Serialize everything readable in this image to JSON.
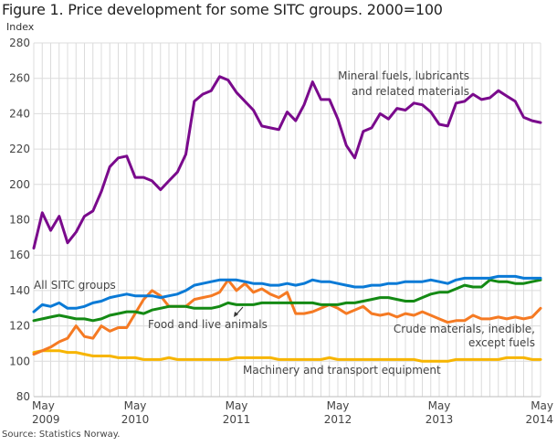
{
  "chart_data": {
    "type": "line",
    "title": "Figure 1. Price development for some SITC groups. 2000=100",
    "xlabel": "",
    "ylabel": "Index",
    "ylim": [
      80,
      280
    ],
    "yticks": [
      80,
      100,
      120,
      140,
      160,
      180,
      200,
      220,
      240,
      260,
      280
    ],
    "xrange": [
      "May 2009",
      "May 2014"
    ],
    "xticks": [
      {
        "month_index": 0,
        "line1": "May",
        "line2": "2009"
      },
      {
        "month_index": 12,
        "line1": "May",
        "line2": "2010"
      },
      {
        "month_index": 24,
        "line1": "May",
        "line2": "2011"
      },
      {
        "month_index": 36,
        "line1": "May",
        "line2": "2012"
      },
      {
        "month_index": 48,
        "line1": "May",
        "line2": "2013"
      },
      {
        "month_index": 60,
        "line1": "May",
        "line2": "2014"
      }
    ],
    "grid": true,
    "series": [
      {
        "name": "Mineral fuels, lubricants and related materials",
        "color": "#7a0a8c",
        "values": [
          164,
          184,
          174,
          182,
          167,
          173,
          182,
          185,
          196,
          210,
          215,
          216,
          204,
          204,
          202,
          197,
          202,
          207,
          217,
          247,
          251,
          253,
          261,
          259,
          252,
          247,
          242,
          233,
          232,
          231,
          241,
          236,
          245,
          258,
          248,
          248,
          237,
          222,
          215,
          230,
          232,
          240,
          237,
          243,
          242,
          246,
          245,
          241,
          234,
          233,
          246,
          247,
          251,
          248,
          249,
          253,
          250,
          247,
          238,
          236,
          235
        ]
      },
      {
        "name": "All SITC groups",
        "color": "#0a7ad6",
        "values": [
          128,
          132,
          131,
          133,
          130,
          130,
          131,
          133,
          134,
          136,
          137,
          138,
          137,
          137,
          137,
          136,
          137,
          138,
          140,
          143,
          144,
          145,
          146,
          146,
          146,
          145,
          144,
          144,
          143,
          143,
          144,
          143,
          144,
          146,
          145,
          145,
          144,
          143,
          142,
          142,
          143,
          143,
          144,
          144,
          145,
          145,
          145,
          146,
          145,
          144,
          146,
          147,
          147,
          147,
          147,
          148,
          148,
          148,
          147,
          147,
          147
        ]
      },
      {
        "name": "Food and live animals",
        "color": "#148a14",
        "values": [
          123,
          124,
          125,
          126,
          125,
          124,
          124,
          123,
          124,
          126,
          127,
          128,
          128,
          127,
          129,
          130,
          131,
          131,
          131,
          130,
          130,
          130,
          131,
          133,
          132,
          132,
          132,
          133,
          133,
          133,
          133,
          133,
          133,
          133,
          132,
          132,
          132,
          133,
          133,
          134,
          135,
          136,
          136,
          135,
          134,
          134,
          136,
          138,
          139,
          139,
          141,
          143,
          142,
          142,
          146,
          145,
          145,
          144,
          144,
          145,
          146
        ]
      },
      {
        "name": "Crude materials, inedible, except fuels",
        "color": "#f57a23",
        "values": [
          104,
          106,
          108,
          111,
          113,
          120,
          114,
          113,
          120,
          117,
          119,
          119,
          127,
          135,
          140,
          137,
          131,
          131,
          131,
          135,
          136,
          137,
          139,
          146,
          140,
          144,
          139,
          141,
          138,
          136,
          139,
          127,
          127,
          128,
          130,
          132,
          130,
          127,
          129,
          131,
          127,
          126,
          127,
          125,
          127,
          126,
          128,
          126,
          124,
          122,
          123,
          123,
          126,
          124,
          124,
          125,
          124,
          125,
          124,
          125,
          130
        ]
      },
      {
        "name": "Machinery and transport equipment",
        "color": "#f7b500",
        "values": [
          105,
          106,
          106,
          106,
          105,
          105,
          104,
          103,
          103,
          103,
          102,
          102,
          102,
          101,
          101,
          101,
          102,
          101,
          101,
          101,
          101,
          101,
          101,
          101,
          102,
          102,
          102,
          102,
          102,
          101,
          101,
          101,
          101,
          101,
          101,
          102,
          101,
          101,
          101,
          101,
          101,
          101,
          101,
          101,
          101,
          101,
          100,
          100,
          100,
          100,
          101,
          101,
          101,
          101,
          101,
          101,
          102,
          102,
          102,
          101,
          101
        ]
      }
    ],
    "annotations": [
      {
        "text_lines": [
          "Mineral fuels, lubricants",
          "and related materials"
        ],
        "series": "Mineral fuels, lubricants and related materials"
      },
      {
        "text_lines": [
          "All SITC groups"
        ],
        "series": "All SITC groups"
      },
      {
        "text_lines": [
          "Food and live animals"
        ],
        "series": "Food and live animals",
        "arrow": true
      },
      {
        "text_lines": [
          "Crude materials, inedible,",
          "except fuels"
        ],
        "series": "Crude materials, inedible, except fuels"
      },
      {
        "text_lines": [
          "Machinery and transport equipment"
        ],
        "series": "Machinery and transport equipment"
      }
    ],
    "source": "Source: Statistics Norway."
  }
}
